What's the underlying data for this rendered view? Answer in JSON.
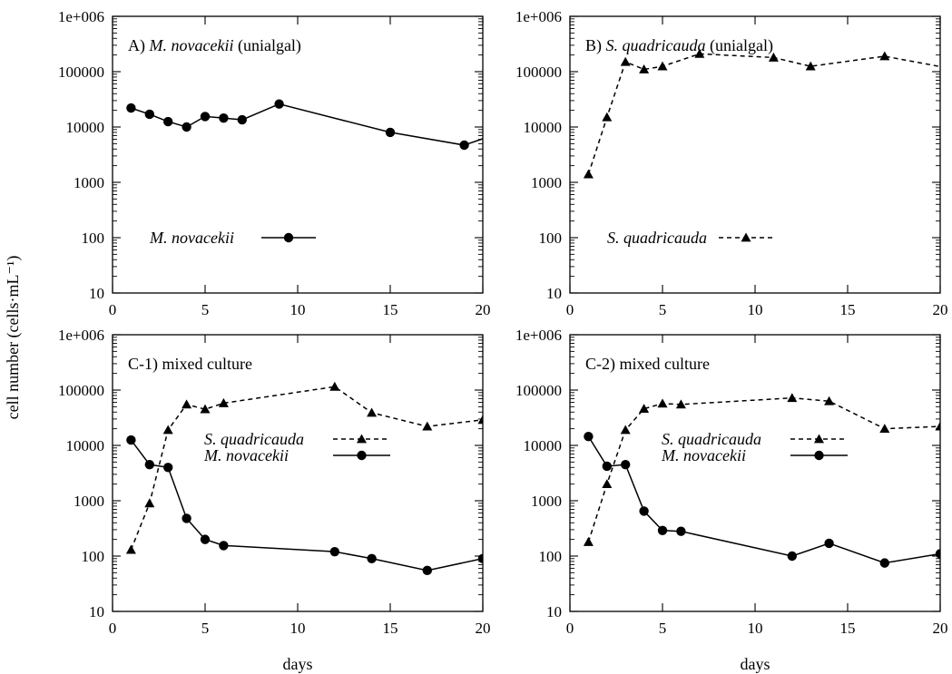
{
  "figure": {
    "ylabel": "cell number (cells·mL⁻¹)",
    "xlabel": "days"
  },
  "chart_data": [
    {
      "type": "line",
      "panel_label": "A)",
      "title_species": "M. novacekii",
      "title_suffix": "(unialgal)",
      "xlim": [
        0,
        20
      ],
      "ylim": [
        10,
        1000000
      ],
      "y_scale": "log",
      "x_ticks": [
        0,
        5,
        10,
        15,
        20
      ],
      "y_ticks": [
        10,
        100,
        1000,
        10000,
        100000,
        1000000
      ],
      "y_tick_labels": [
        "10",
        "100",
        "1000",
        "10000",
        "100000",
        "1e+006"
      ],
      "legend_position": "left-middle",
      "series": [
        {
          "name": "M. novacekii",
          "marker": "circle",
          "line": "solid",
          "x": [
            1,
            2,
            3,
            4,
            5,
            6,
            7,
            9,
            15,
            19,
            20.5
          ],
          "y": [
            22000,
            17000,
            12500,
            10000,
            15500,
            14500,
            13500,
            26000,
            8000,
            4700,
            7000
          ]
        }
      ]
    },
    {
      "type": "line",
      "panel_label": "B)",
      "title_species": "S. quadricauda",
      "title_suffix": "(unialgal)",
      "xlim": [
        0,
        20
      ],
      "ylim": [
        10,
        1000000
      ],
      "y_scale": "log",
      "x_ticks": [
        0,
        5,
        10,
        15,
        20
      ],
      "y_ticks": [
        10,
        100,
        1000,
        10000,
        100000,
        1000000
      ],
      "y_tick_labels": [
        "10",
        "100",
        "1000",
        "10000",
        "100000",
        "1e+006"
      ],
      "legend_position": "left-middle",
      "series": [
        {
          "name": "S. quadricauda",
          "marker": "triangle",
          "line": "dashed",
          "x": [
            1,
            2,
            3,
            4,
            5,
            7,
            11,
            13,
            17,
            20.5
          ],
          "y": [
            1400,
            15000,
            150000,
            110000,
            125000,
            210000,
            180000,
            125000,
            190000,
            115000
          ]
        }
      ]
    },
    {
      "type": "line",
      "panel_label": "C-1)",
      "title_species": "",
      "title_suffix": "mixed culture",
      "xlim": [
        0,
        20
      ],
      "ylim": [
        10,
        1000000
      ],
      "y_scale": "log",
      "x_ticks": [
        0,
        5,
        10,
        15,
        20
      ],
      "y_ticks": [
        10,
        100,
        1000,
        10000,
        100000,
        1000000
      ],
      "y_tick_labels": [
        "10",
        "100",
        "1000",
        "10000",
        "100000",
        "1e+006"
      ],
      "legend_position": "right-middle",
      "series": [
        {
          "name": "S. quadricauda",
          "marker": "triangle",
          "line": "dashed",
          "x": [
            1,
            2,
            3,
            4,
            5,
            6,
            12,
            14,
            17,
            20
          ],
          "y": [
            130,
            900,
            19000,
            55000,
            45000,
            58000,
            115000,
            39000,
            22000,
            29000
          ]
        },
        {
          "name": "M. novacekii",
          "marker": "circle",
          "line": "solid",
          "x": [
            1,
            2,
            3,
            4,
            5,
            6,
            12,
            14,
            17,
            20
          ],
          "y": [
            12500,
            4500,
            4000,
            480,
            200,
            155,
            120,
            90,
            55,
            90
          ]
        }
      ]
    },
    {
      "type": "line",
      "panel_label": "C-2)",
      "title_species": "",
      "title_suffix": "mixed culture",
      "xlim": [
        0,
        20
      ],
      "ylim": [
        10,
        1000000
      ],
      "y_scale": "log",
      "x_ticks": [
        0,
        5,
        10,
        15,
        20
      ],
      "y_ticks": [
        10,
        100,
        1000,
        10000,
        100000,
        1000000
      ],
      "y_tick_labels": [
        "10",
        "100",
        "1000",
        "10000",
        "100000",
        "1e+006"
      ],
      "legend_position": "right-middle",
      "series": [
        {
          "name": "S. quadricauda",
          "marker": "triangle",
          "line": "dashed",
          "x": [
            1,
            2,
            3,
            4,
            5,
            6,
            12,
            14,
            17,
            20
          ],
          "y": [
            180,
            2000,
            19000,
            46000,
            57000,
            55000,
            72000,
            63000,
            20000,
            22000
          ]
        },
        {
          "name": "M. novacekii",
          "marker": "circle",
          "line": "solid",
          "x": [
            1,
            2,
            3,
            4,
            5,
            6,
            12,
            14,
            17,
            20
          ],
          "y": [
            14500,
            4200,
            4500,
            650,
            290,
            280,
            100,
            170,
            75,
            110
          ]
        }
      ]
    }
  ]
}
